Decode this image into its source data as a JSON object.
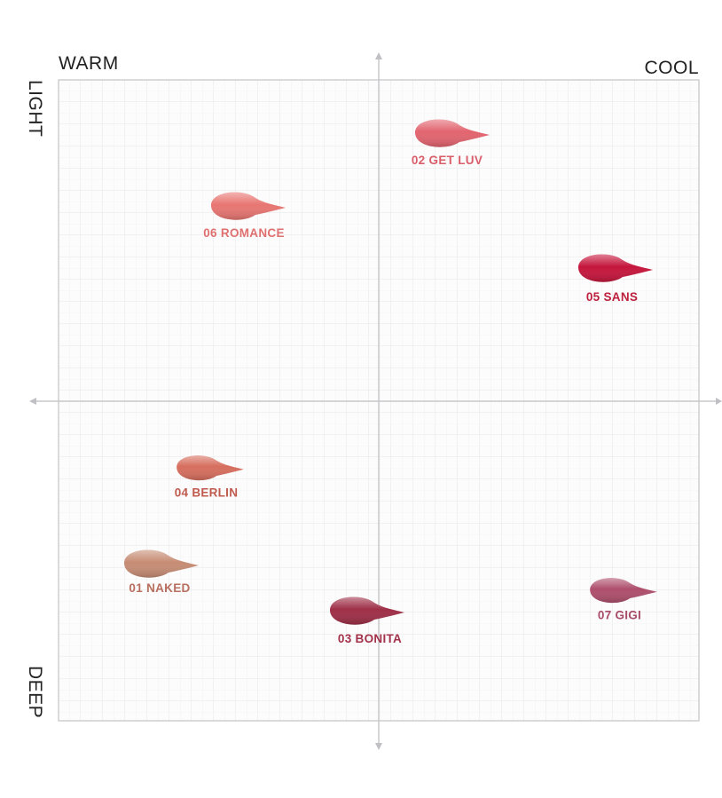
{
  "axes": {
    "warm": "WARM",
    "cool": "COOL",
    "light": "LIGHT",
    "deep": "DEEP"
  },
  "nodes": [
    {
      "label": "02 GET LUV"
    },
    {
      "label": "06 ROMANCE"
    },
    {
      "label": "05 SANS"
    },
    {
      "label": "04 BERLIN"
    },
    {
      "label": "01 NAKED"
    },
    {
      "label": "03 BONITA"
    },
    {
      "label": "07 GIGI"
    }
  ]
}
